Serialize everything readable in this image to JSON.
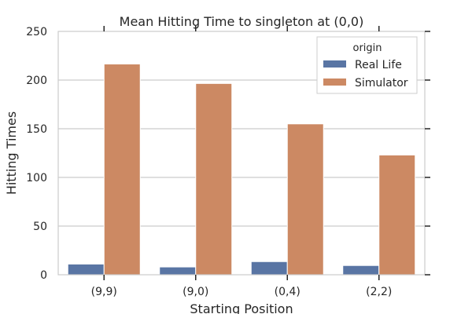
{
  "chart_data": {
    "type": "bar",
    "title": "Mean Hitting Time to singleton at (0,0)",
    "xlabel": "Starting Position",
    "ylabel": "Hitting Times",
    "categories": [
      "(9,9)",
      "(9,0)",
      "(0,4)",
      "(2,2)"
    ],
    "series": [
      {
        "name": "Real Life",
        "values": [
          11,
          8,
          13.5,
          9.5
        ],
        "color": "#5975a4"
      },
      {
        "name": "Simulator",
        "values": [
          216.5,
          196.5,
          155,
          123
        ],
        "color": "#cc8963"
      }
    ],
    "ylim": [
      0,
      250
    ],
    "yticks": [
      0,
      50,
      100,
      150,
      200,
      250
    ],
    "ytick_labels": [
      "0",
      "50",
      "100",
      "150",
      "200",
      "250"
    ],
    "grid": "horizontal",
    "legend": {
      "title": "origin",
      "position": "top-right"
    }
  }
}
